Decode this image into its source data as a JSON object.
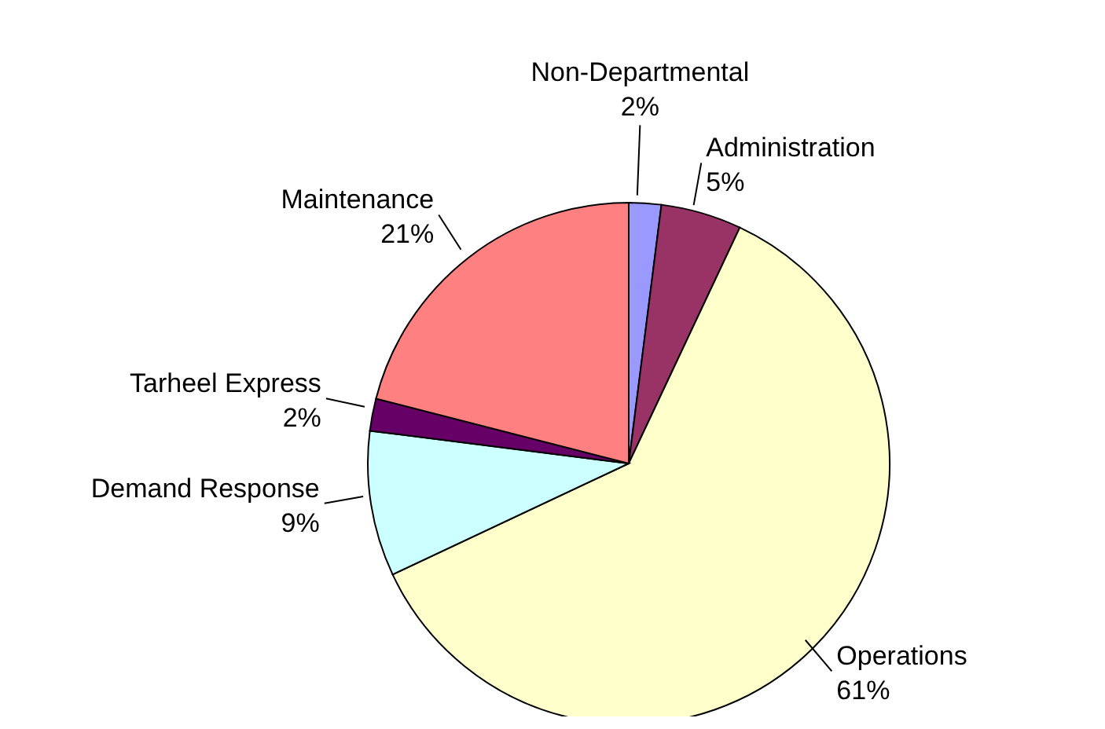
{
  "chart_data": {
    "type": "pie",
    "categories": [
      "Non-Departmental",
      "Administration",
      "Operations",
      "Demand Response",
      "Tarheel Express",
      "Maintenance"
    ],
    "values": [
      2,
      5,
      61,
      9,
      2,
      21
    ],
    "value_labels": [
      "2%",
      "5%",
      "61%",
      "9%",
      "2%",
      "21%"
    ],
    "colors": [
      "#9999ff",
      "#993366",
      "#ffffcc",
      "#ccffff",
      "#660066",
      "#ff8080"
    ],
    "legend": false
  }
}
